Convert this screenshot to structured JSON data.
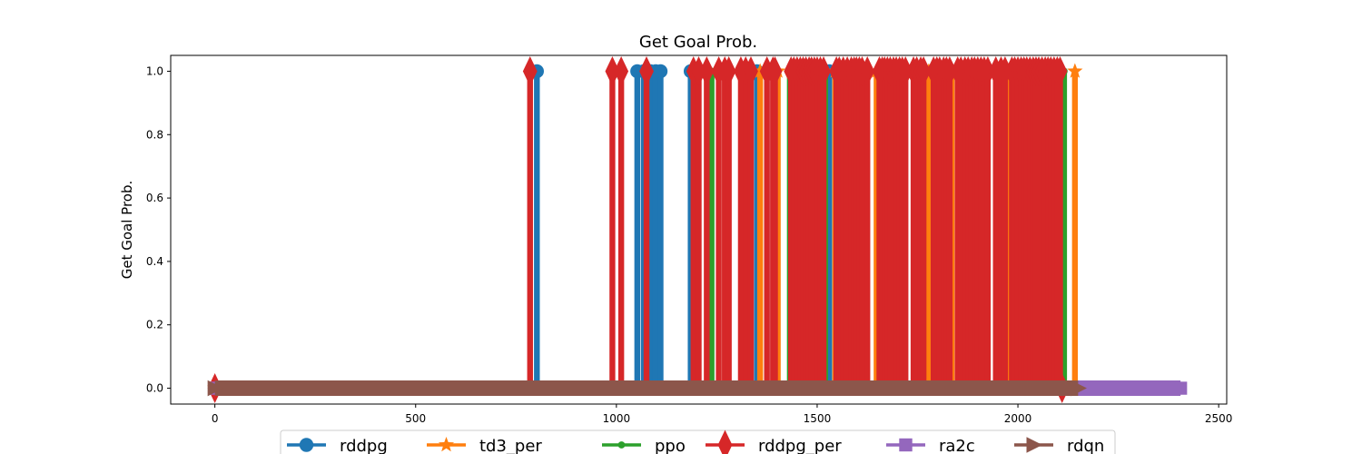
{
  "chart_data": {
    "type": "line",
    "title": "Get Goal Prob.",
    "xlabel": "",
    "ylabel": "Get Goal Prob.",
    "xlim": [
      -110,
      2520
    ],
    "ylim": [
      -0.05,
      1.05
    ],
    "xticks": [
      0,
      500,
      1000,
      1500,
      2000,
      2500
    ],
    "yticks": [
      0.0,
      0.2,
      0.4,
      0.6,
      0.8,
      1.0
    ],
    "xtick_labels": [
      "0",
      "500",
      "1000",
      "1500",
      "2000",
      "2500"
    ],
    "ytick_labels": [
      "0.0",
      "0.2",
      "0.4",
      "0.6",
      "0.8",
      "1.0"
    ],
    "legend_position": "bottom-center",
    "grid": false,
    "series": [
      {
        "name": "rddpg",
        "color": "#1f77b4",
        "marker": "circle",
        "length": 2120,
        "success_episodes": [
          802,
          1052,
          1068,
          1085,
          1098,
          1110,
          1185,
          1350,
          1470,
          1530,
          1610,
          1700,
          1870,
          1955,
          2040
        ]
      },
      {
        "name": "td3_per",
        "color": "#ff7f0e",
        "marker": "star",
        "length": 2145,
        "success_episodes": [
          1358,
          1402,
          1445,
          1498,
          1545,
          1590,
          1648,
          1700,
          1778,
          1835,
          1905,
          1975,
          2040,
          2100,
          2142
        ]
      },
      {
        "name": "ppo",
        "color": "#2ca02c",
        "marker": "dot",
        "length": 2120,
        "success_episodes": [
          1237,
          1432,
          1520,
          1600,
          1690,
          1760,
          1880,
          1990,
          2115
        ]
      },
      {
        "name": "rddpg_per",
        "color": "#d62728",
        "marker": "thin-diamond",
        "length": 2110,
        "success_episodes": [
          785,
          990,
          1012,
          1075,
          1192,
          1205,
          1225,
          1255,
          1270,
          1280,
          1310,
          1322,
          1335,
          1375,
          1390,
          1395,
          1435,
          1442,
          1450,
          1458,
          1465,
          1472,
          1480,
          1486,
          1493,
          1500,
          1508,
          1516,
          1548,
          1555,
          1565,
          1575,
          1585,
          1592,
          1598,
          1605,
          1612,
          1625,
          1655,
          1662,
          1668,
          1675,
          1682,
          1690,
          1697,
          1705,
          1712,
          1720,
          1740,
          1748,
          1758,
          1765,
          1790,
          1798,
          1805,
          1815,
          1822,
          1830,
          1850,
          1858,
          1868,
          1876,
          1885,
          1892,
          1900,
          1908,
          1916,
          1925,
          1945,
          1958,
          1968,
          1985,
          1992,
          2000,
          2008,
          2015,
          2022,
          2030,
          2038,
          2045,
          2052,
          2060,
          2068,
          2075,
          2082,
          2090,
          2098,
          2105
        ]
      },
      {
        "name": "ra2c",
        "color": "#9467bd",
        "marker": "square",
        "length": 2405,
        "success_episodes": []
      },
      {
        "name": "rdqn",
        "color": "#8c564b",
        "marker": "triangle-right",
        "length": 2150,
        "success_episodes": []
      }
    ]
  }
}
